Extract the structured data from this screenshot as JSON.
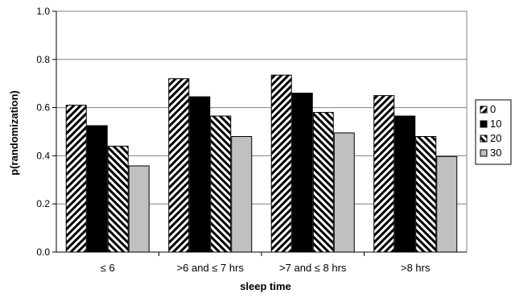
{
  "chart_data": {
    "type": "bar",
    "title": "",
    "xlabel": "sleep time",
    "ylabel": "p(randomization)",
    "ylim": [
      0,
      1.0
    ],
    "yticks": [
      "0.0",
      "0.2",
      "0.4",
      "0.6",
      "0.8",
      "1.0"
    ],
    "grid": true,
    "legend_position": "right",
    "categories": [
      "≤ 6",
      ">6 and ≤ 7 hrs",
      ">7 and ≤ 8 hrs",
      ">8 hrs"
    ],
    "series": [
      {
        "name": "0",
        "pattern": "hatch-forward",
        "color": "#000000",
        "values": [
          0.61,
          0.72,
          0.735,
          0.65
        ]
      },
      {
        "name": "10",
        "pattern": "solid",
        "color": "#000000",
        "values": [
          0.525,
          0.645,
          0.66,
          0.565
        ]
      },
      {
        "name": "20",
        "pattern": "hatch-back",
        "color": "#000000",
        "values": [
          0.44,
          0.565,
          0.58,
          0.48
        ]
      },
      {
        "name": "30",
        "pattern": "solid",
        "color": "#c0c0c0",
        "values": [
          0.358,
          0.48,
          0.495,
          0.397
        ]
      }
    ]
  }
}
